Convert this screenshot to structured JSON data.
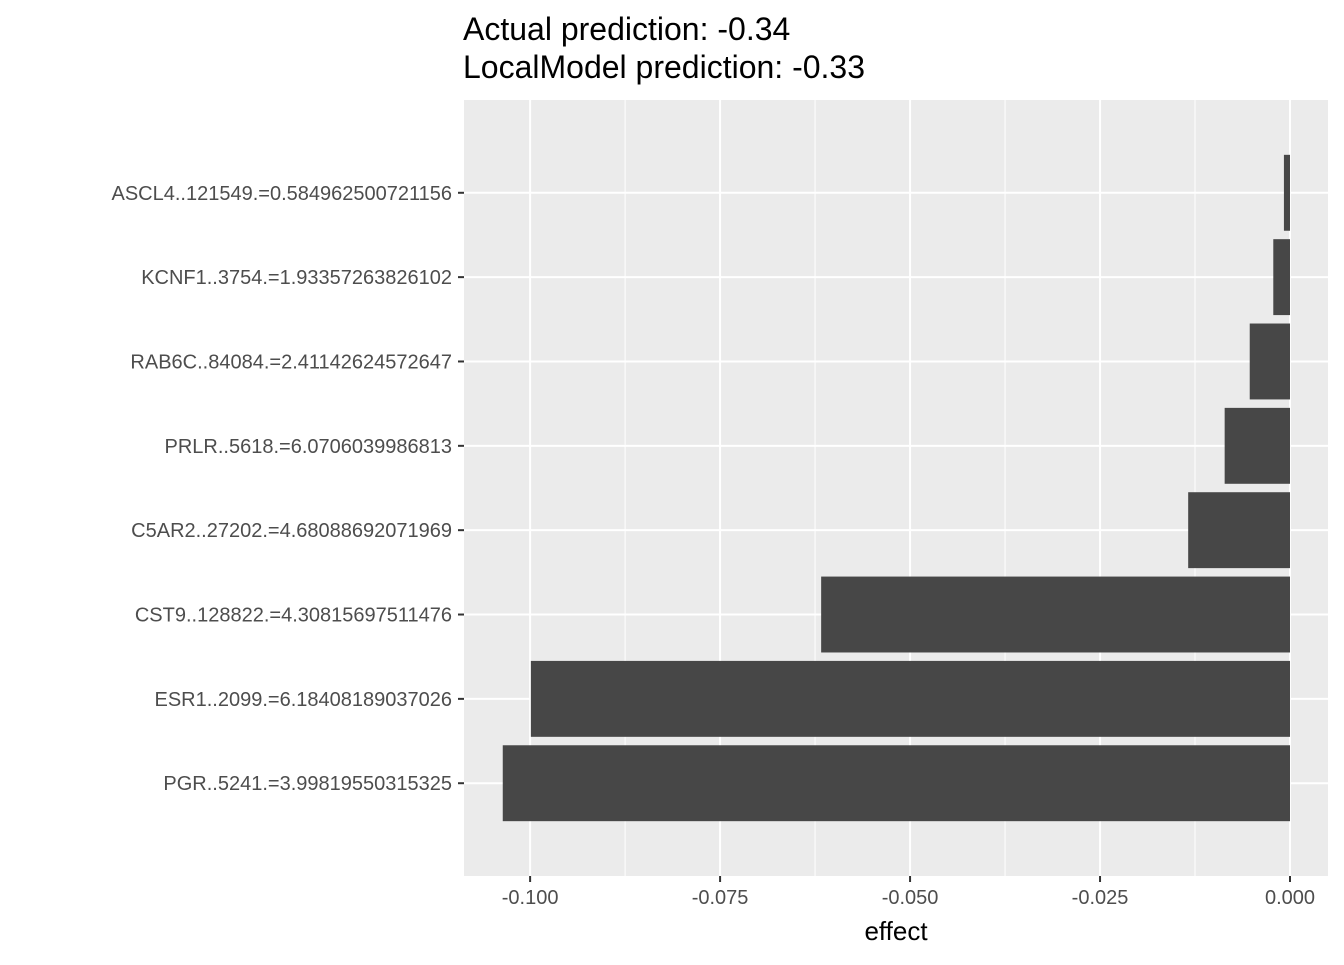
{
  "chart_data": {
    "type": "barh",
    "title": [
      "Actual prediction: -0.34",
      "LocalModel prediction: -0.33"
    ],
    "xlabel": "effect",
    "categories": [
      "ASCL4..121549.=0.584962500721156",
      "KCNF1..3754.=1.93357263826102",
      "RAB6C..84084.=2.41142624572647",
      "PRLR..5618.=6.0706039986813",
      "C5AR2..27202.=4.68088692071969",
      "CST9..128822.=4.30815697511476",
      "ESR1..2099.=6.18408189037026",
      "PGR..5241.=3.99819550315325"
    ],
    "values": [
      -0.0008,
      -0.0022,
      -0.0053,
      -0.0086,
      -0.0134,
      -0.0617,
      -0.0999,
      -0.1036
    ],
    "color": "#474747",
    "xlim": [
      -0.1087,
      0.005
    ],
    "xticks": [
      {
        "value": -0.1,
        "label": "-0.100"
      },
      {
        "value": -0.075,
        "label": "-0.075"
      },
      {
        "value": -0.05,
        "label": "-0.050"
      },
      {
        "value": -0.025,
        "label": "-0.025"
      },
      {
        "value": 0,
        "label": "0.000"
      }
    ],
    "grid": true
  }
}
